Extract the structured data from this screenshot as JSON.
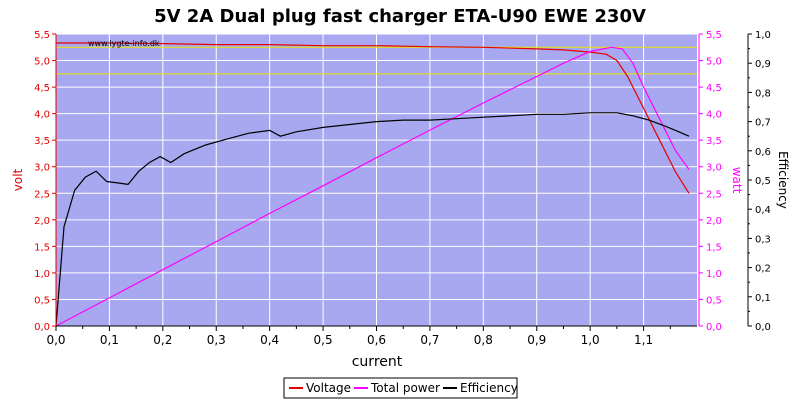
{
  "chart_data": {
    "type": "line",
    "title": "5V 2A Dual plug fast charger ETA-U90 EWE 230V",
    "watermark": "www.lygte-info.dk",
    "xlabel": "current",
    "ylabel_left": "volt",
    "ylabel_right1": "watt",
    "ylabel_right2": "Efficiency",
    "xlim": [
      0,
      1.2
    ],
    "ylim_left": [
      0,
      5.5
    ],
    "ylim_right1": [
      0,
      5.5
    ],
    "ylim_right2": [
      0,
      1.0
    ],
    "x_ticks": [
      "0,0",
      "0,1",
      "0,2",
      "0,3",
      "0,4",
      "0,5",
      "0,6",
      "0,7",
      "0,8",
      "0,9",
      "1,0",
      "1,1"
    ],
    "y_left_ticks": [
      "0,0",
      "0,5",
      "1,0",
      "1,5",
      "2,0",
      "2,5",
      "3,0",
      "3,5",
      "4,0",
      "4,5",
      "5,0",
      "5,5"
    ],
    "y_right1_ticks": [
      "0,0",
      "0,5",
      "1,0",
      "1,5",
      "2,0",
      "2,5",
      "3,0",
      "3,5",
      "4,0",
      "4,5",
      "5,0",
      "5,5"
    ],
    "y_right2_ticks": [
      "0,0",
      "0,1",
      "0,2",
      "0,3",
      "0,4",
      "0,5",
      "0,6",
      "0,7",
      "0,8",
      "0,9",
      "1,0"
    ],
    "reference_lines": [
      5.25,
      4.75
    ],
    "grid": true,
    "legend_position": "bottom-center",
    "colors": {
      "plot_bg": "#a8a8f0",
      "grid": "#ffffff",
      "voltage": "#e60000",
      "power": "#ff00ff",
      "efficiency": "#000000",
      "reference": "#e6e600",
      "left_axis": "#e60000",
      "right1_axis": "#ff00ff",
      "right2_axis": "#000000"
    },
    "series": [
      {
        "name": "Voltage",
        "axis": "left",
        "x": [
          0.0,
          0.1,
          0.2,
          0.3,
          0.4,
          0.5,
          0.6,
          0.65,
          0.7,
          0.8,
          0.9,
          0.95,
          1.0,
          1.03,
          1.05,
          1.07,
          1.1,
          1.13,
          1.16,
          1.185
        ],
        "y": [
          5.33,
          5.33,
          5.32,
          5.3,
          5.3,
          5.28,
          5.28,
          5.27,
          5.26,
          5.25,
          5.22,
          5.2,
          5.16,
          5.12,
          5.0,
          4.7,
          4.1,
          3.5,
          2.9,
          2.5
        ]
      },
      {
        "name": "Total power",
        "axis": "right1",
        "x": [
          0.0,
          0.1,
          0.2,
          0.3,
          0.4,
          0.5,
          0.6,
          0.7,
          0.8,
          0.9,
          0.95,
          1.0,
          1.04,
          1.06,
          1.08,
          1.1,
          1.13,
          1.16,
          1.185
        ],
        "y": [
          0.0,
          0.53,
          1.06,
          1.59,
          2.12,
          2.64,
          3.17,
          3.69,
          4.2,
          4.7,
          4.95,
          5.17,
          5.25,
          5.22,
          4.95,
          4.5,
          3.9,
          3.3,
          2.95
        ]
      },
      {
        "name": "Efficiency",
        "axis": "right2",
        "x": [
          0.0,
          0.015,
          0.035,
          0.055,
          0.075,
          0.095,
          0.115,
          0.135,
          0.155,
          0.175,
          0.195,
          0.215,
          0.24,
          0.28,
          0.32,
          0.36,
          0.4,
          0.42,
          0.45,
          0.5,
          0.55,
          0.6,
          0.65,
          0.7,
          0.75,
          0.8,
          0.85,
          0.9,
          0.95,
          1.0,
          1.05,
          1.08,
          1.11,
          1.14,
          1.16,
          1.185
        ],
        "y": [
          0.0,
          0.34,
          0.465,
          0.51,
          0.53,
          0.495,
          0.49,
          0.485,
          0.53,
          0.56,
          0.58,
          0.56,
          0.59,
          0.62,
          0.64,
          0.66,
          0.67,
          0.65,
          0.665,
          0.68,
          0.69,
          0.7,
          0.705,
          0.705,
          0.71,
          0.715,
          0.72,
          0.725,
          0.725,
          0.73,
          0.73,
          0.72,
          0.705,
          0.685,
          0.67,
          0.65
        ]
      }
    ]
  }
}
